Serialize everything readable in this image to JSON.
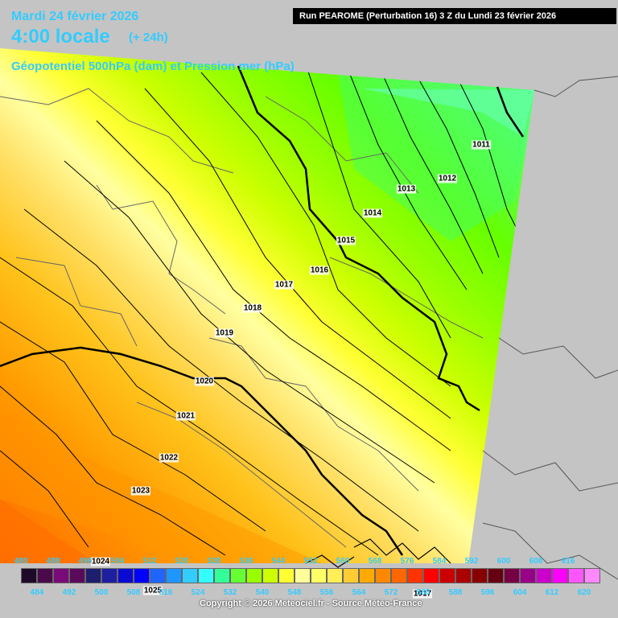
{
  "header": {
    "date": "Mardi 24 février 2026",
    "local_time": "4:00 locale",
    "forecast_step": "(+ 24h)",
    "parameter": "Géopotentiel 500hPa (dam) et Pression mer (hPa)",
    "run_info": "Run PEAROME (Perturbation 16) 3 Z du Lundi 23 février 2026"
  },
  "isobars": [
    {
      "label": "1011"
    },
    {
      "label": "1012"
    },
    {
      "label": "1013"
    },
    {
      "label": "1014"
    },
    {
      "label": "1015"
    },
    {
      "label": "1016"
    },
    {
      "label": "1017"
    },
    {
      "label": "1018"
    },
    {
      "label": "1019"
    },
    {
      "label": "1020"
    },
    {
      "label": "1021"
    },
    {
      "label": "1022"
    },
    {
      "label": "1023"
    },
    {
      "label": "1024"
    },
    {
      "label": "1025"
    },
    {
      "label": "1017"
    }
  ],
  "legend": {
    "labels_top": [
      "480",
      "488",
      "496",
      "504",
      "512",
      "520",
      "528",
      "536",
      "544",
      "552",
      "560",
      "568",
      "576",
      "584",
      "592",
      "600",
      "608",
      "616"
    ],
    "labels_bottom": [
      "484",
      "492",
      "500",
      "508",
      "516",
      "524",
      "532",
      "540",
      "548",
      "556",
      "564",
      "572",
      "580",
      "588",
      "596",
      "604",
      "612",
      "620"
    ],
    "colors": [
      "#1e0a28",
      "#4a0a4a",
      "#7a0a7a",
      "#5a0a5a",
      "#1e1e6e",
      "#1e1ea0",
      "#0a0ad2",
      "#0000ff",
      "#1e64ff",
      "#1e96ff",
      "#33ccff",
      "#33ffff",
      "#33ff99",
      "#66ff33",
      "#99ff00",
      "#ccff00",
      "#ffff33",
      "#ffff99",
      "#ffff66",
      "#ffee55",
      "#ffcc33",
      "#ffaa00",
      "#ff8800",
      "#ff6600",
      "#ff3300",
      "#ff0000",
      "#cc0000",
      "#aa0000",
      "#880000",
      "#660011",
      "#770044",
      "#990088",
      "#cc00cc",
      "#ff00ff",
      "#ff55ff",
      "#ff88ff"
    ]
  },
  "copyright": "Copyright © 2026 Meteociel.fr - Source Météo-France"
}
